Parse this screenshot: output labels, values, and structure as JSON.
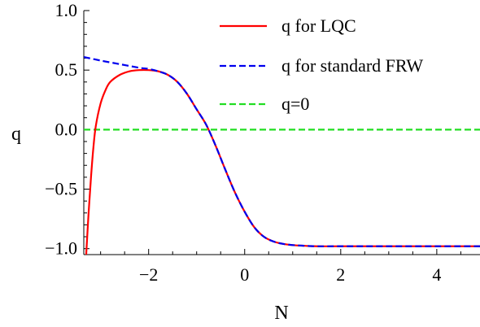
{
  "chart_data": {
    "type": "line",
    "xlabel": "N",
    "ylabel": "q",
    "xlim": [
      -3.35,
      4.9
    ],
    "ylim": [
      -1.05,
      1.0
    ],
    "x_ticks": [
      {
        "value": -2,
        "label": "−2"
      },
      {
        "value": 0,
        "label": "0"
      },
      {
        "value": 2,
        "label": "2"
      },
      {
        "value": 4,
        "label": "4"
      }
    ],
    "y_ticks": [
      {
        "value": 1.0,
        "label": "1.0"
      },
      {
        "value": 0.5,
        "label": "0.5"
      },
      {
        "value": 0.0,
        "label": "0.0"
      },
      {
        "value": -0.5,
        "label": "−0.5"
      },
      {
        "value": -1.0,
        "label": "−1.0"
      }
    ],
    "grid": false,
    "legend_position": "top-right",
    "series": [
      {
        "name": "q for LQC",
        "color": "#ff0000",
        "dash": "solid",
        "x": [
          -3.3,
          -3.25,
          -3.2,
          -3.15,
          -3.1,
          -3.0,
          -2.9,
          -2.8,
          -2.6,
          -2.4,
          -2.2,
          -2.0,
          -1.8,
          -1.6,
          -1.4,
          -1.2,
          -1.0,
          -0.8,
          -0.6,
          -0.4,
          -0.2,
          0.0,
          0.2,
          0.4,
          0.6,
          0.8,
          1.0,
          1.2,
          1.5,
          2.0,
          3.0,
          4.0,
          4.9
        ],
        "y": [
          -1.05,
          -0.7,
          -0.4,
          -0.15,
          0.03,
          0.22,
          0.33,
          0.4,
          0.46,
          0.49,
          0.5,
          0.5,
          0.49,
          0.46,
          0.4,
          0.3,
          0.17,
          0.04,
          -0.14,
          -0.34,
          -0.53,
          -0.69,
          -0.82,
          -0.9,
          -0.94,
          -0.96,
          -0.97,
          -0.975,
          -0.98,
          -0.98,
          -0.98,
          -0.98,
          -0.98
        ]
      },
      {
        "name": "q for standard FRW",
        "color": "#0000ee",
        "dash": "dashed",
        "x": [
          -3.35,
          -3.0,
          -2.6,
          -2.2,
          -2.0,
          -1.8,
          -1.6,
          -1.4,
          -1.2,
          -1.0,
          -0.8,
          -0.6,
          -0.4,
          -0.2,
          0.0,
          0.2,
          0.4,
          0.6,
          0.8,
          1.0,
          1.2,
          1.5,
          2.0,
          3.0,
          4.0,
          4.9
        ],
        "y": [
          0.61,
          0.58,
          0.55,
          0.52,
          0.51,
          0.49,
          0.46,
          0.4,
          0.3,
          0.17,
          0.04,
          -0.14,
          -0.34,
          -0.53,
          -0.69,
          -0.82,
          -0.9,
          -0.94,
          -0.96,
          -0.97,
          -0.975,
          -0.98,
          -0.98,
          -0.98,
          -0.98,
          -0.98
        ]
      },
      {
        "name": "q=0",
        "color": "#22dd22",
        "dash": "dashed",
        "x": [
          -3.35,
          4.9
        ],
        "y": [
          0.0,
          0.0
        ]
      }
    ]
  }
}
